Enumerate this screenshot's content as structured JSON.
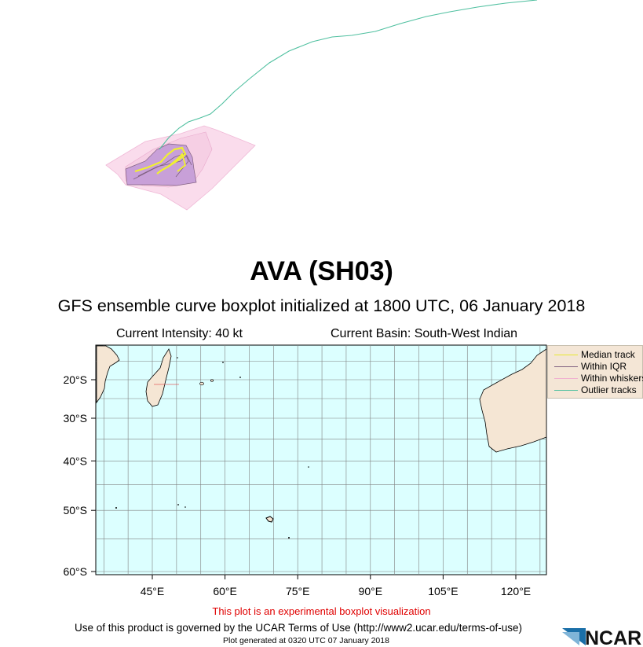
{
  "title": "AVA (SH03)",
  "subtitle": "GFS ensemble curve boxplot initialized at 1800 UTC, 06 January 2018",
  "current_intensity": "Current Intensity: 40 kt",
  "current_basin": "Current Basin: South-West Indian",
  "legend": [
    {
      "label": "Median track",
      "color": "#e8e830"
    },
    {
      "label": "Within IQR",
      "color": "#806080"
    },
    {
      "label": "Within whiskers",
      "color": "#f0b0d0"
    },
    {
      "label": "Outlier tracks",
      "color": "#50c0a0"
    }
  ],
  "map": {
    "lon_ticks": [
      {
        "label": "45°E",
        "value": 45
      },
      {
        "label": "60°E",
        "value": 60
      },
      {
        "label": "75°E",
        "value": 75
      },
      {
        "label": "90°E",
        "value": 90
      },
      {
        "label": "105°E",
        "value": 105
      },
      {
        "label": "120°E",
        "value": 120
      }
    ],
    "lat_ticks": [
      {
        "label": "20°S",
        "value": -20
      },
      {
        "label": "30°S",
        "value": -30
      },
      {
        "label": "40°S",
        "value": -40
      },
      {
        "label": "50°S",
        "value": -50
      },
      {
        "label": "60°S",
        "value": -60
      }
    ],
    "ocean_color": "#dcffff",
    "land_color": "#f5e6d4",
    "grid_color": "#808080"
  },
  "experimental_note": "This plot is an experimental boxplot visualization",
  "terms": "Use of this product is governed by the UCAR Terms of Use (http://www2.ucar.edu/terms-of-use)",
  "generated": "Plot generated at 0320 UTC  07 January 2018",
  "logo_text": "NCAR",
  "colors": {
    "iqr_fill": "#c8a0d8",
    "whisker_fill": "#f8dcec",
    "outlier": "#50c0a0",
    "median": "#e8e830"
  }
}
